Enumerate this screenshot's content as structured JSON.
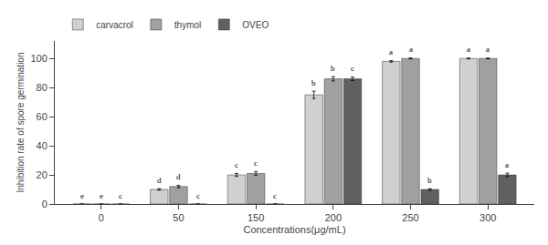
{
  "chart_data": {
    "type": "bar",
    "categories": [
      0,
      50,
      150,
      200,
      250,
      300
    ],
    "series": [
      {
        "name": "carvacrol",
        "color": "#d0d0d0",
        "values": [
          0,
          10,
          20,
          75,
          98,
          100
        ],
        "errors": [
          0,
          0.5,
          1.0,
          2.5,
          0.5,
          0.3
        ],
        "annotations": [
          "e",
          "d",
          "c",
          "b",
          "a",
          "a"
        ]
      },
      {
        "name": "thymol",
        "color": "#a0a0a0",
        "values": [
          0,
          12,
          21,
          86,
          100,
          100
        ],
        "errors": [
          0,
          0.8,
          1.2,
          1.5,
          0.3,
          0.3
        ],
        "annotations": [
          "e",
          "d",
          "c",
          "b",
          "a",
          "a"
        ]
      },
      {
        "name": "OVEO",
        "color": "#606060",
        "values": [
          0,
          0,
          0,
          86,
          10,
          20
        ],
        "errors": [
          0,
          0,
          0,
          1.2,
          0.5,
          1.2
        ],
        "annotations": [
          "c",
          "c",
          "c",
          "c",
          "b",
          "a"
        ]
      }
    ],
    "xlabel": "Concentrations(μg/mL)",
    "ylabel": "Inhibition rate of spore germination",
    "ylim": [
      0,
      112
    ],
    "yticks": [
      0,
      20,
      40,
      60,
      80,
      100
    ],
    "grid": false,
    "legend": "upper left"
  }
}
